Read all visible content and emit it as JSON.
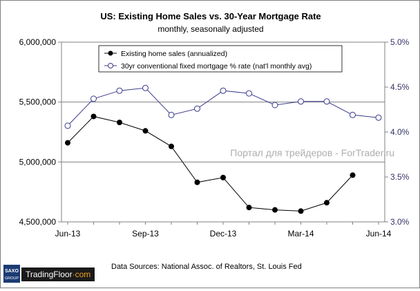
{
  "chart_data": {
    "type": "line",
    "title": "US: Existing Home Sales vs. 30-Year Mortgage Rate",
    "subtitle": "monthly, seasonally adjusted",
    "x": [
      "Jun-13",
      "Jul-13",
      "Aug-13",
      "Sep-13",
      "Oct-13",
      "Nov-13",
      "Dec-13",
      "Jan-14",
      "Feb-14",
      "Mar-14",
      "Apr-14",
      "May-14",
      "Jun-14"
    ],
    "x_tick_labels": [
      "Jun-13",
      "Sep-13",
      "Dec-13",
      "Mar-14",
      "Jun-14"
    ],
    "y_left": {
      "range": [
        4500000,
        6000000
      ],
      "ticks": [
        "4,500,000",
        "5,000,000",
        "5,500,000",
        "6,000,000"
      ]
    },
    "y_right": {
      "range": [
        3.0,
        5.0
      ],
      "ticks": [
        "3.0%",
        "3.5%",
        "4.0%",
        "4.5%",
        "5.0%"
      ]
    },
    "series": [
      {
        "name": "Existing home sales (annualized)",
        "axis": "left",
        "color": "#000000",
        "marker": "filled-circle",
        "values": [
          5160000,
          5380000,
          5330000,
          5260000,
          5130000,
          4830000,
          4870000,
          4620000,
          4600000,
          4590000,
          4660000,
          4890000,
          null
        ]
      },
      {
        "name": "30yr conventional fixed mortgage % rate (nat'l monthly avg)",
        "axis": "right",
        "color": "#3a3a8c",
        "marker": "open-circle",
        "values": [
          4.07,
          4.37,
          4.46,
          4.49,
          4.19,
          4.26,
          4.46,
          4.43,
          4.3,
          4.34,
          4.34,
          4.19,
          4.16
        ]
      }
    ],
    "gridlines": "horizontal",
    "legend_position": "top-left"
  },
  "watermark": "Портал для трейдеров - ForTrader.ru",
  "sources": "Data Sources: National Assoc. of Realtors, St. Louis Fed",
  "logo": {
    "badge_top": "SAXO",
    "badge_bottom": "GROUP",
    "name": "TradingFloor",
    "suffix": "·com"
  }
}
